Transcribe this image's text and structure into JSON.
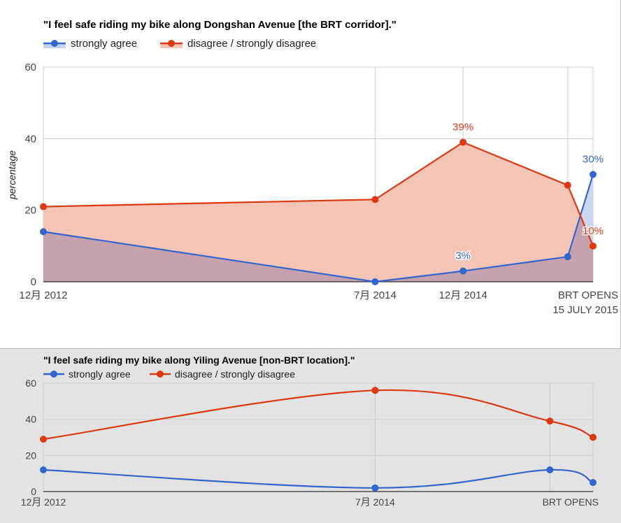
{
  "colors": {
    "agree": "#3366cc",
    "disagree": "#dc3912",
    "agree_fill": "#c6d3f0",
    "disagree_fill": "#f4c4b7",
    "overlap_fill": "#c5a2ad",
    "panel2_bg": "#e3e3e3",
    "grid": "#cccccc"
  },
  "chart_data": [
    {
      "type": "area",
      "title": "\"I feel safe riding my bike along Dongshan Avenue [the BRT corridor].\"",
      "xlabel": "",
      "ylabel": "percentage",
      "ylim": [
        0,
        60
      ],
      "yticks": [
        0,
        20,
        40,
        60
      ],
      "grid": true,
      "legend_position": "top",
      "x": [
        "2012-12",
        "2014-07",
        "2014-12",
        "2015-06",
        "2015-07-15"
      ],
      "x_tick_labels": [
        "12月 2012",
        "7月 2014",
        "12月 2014",
        "BRT OPENS\n15 JULY 2015"
      ],
      "series": [
        {
          "name": "strongly agree",
          "values": [
            14,
            0,
            3,
            7,
            30
          ]
        },
        {
          "name": "disagree / strongly disagree",
          "values": [
            21,
            23,
            39,
            27,
            10
          ]
        }
      ],
      "annotations": [
        {
          "series": 1,
          "point": 2,
          "text": "39%"
        },
        {
          "series": 0,
          "point": 4,
          "text": "30%"
        },
        {
          "series": 0,
          "point": 2,
          "text": "3%"
        },
        {
          "series": 1,
          "point": 4,
          "text": "10%"
        }
      ]
    },
    {
      "type": "line",
      "title": "\"I feel safe riding my bike along Yiling Avenue [non-BRT location].\"",
      "xlabel": "",
      "ylabel": "",
      "ylim": [
        0,
        60
      ],
      "yticks": [
        0,
        20,
        40,
        60
      ],
      "grid": true,
      "legend_position": "top",
      "x": [
        "2012-12",
        "2014-07",
        "2015-05",
        "2015-07-15"
      ],
      "x_tick_labels": [
        "12月 2012",
        "7月 2014",
        "BRT OPENS"
      ],
      "series": [
        {
          "name": "strongly agree",
          "values": [
            12,
            2,
            12,
            5
          ]
        },
        {
          "name": "disagree / strongly disagree",
          "values": [
            29,
            56,
            39,
            30
          ]
        }
      ]
    }
  ]
}
